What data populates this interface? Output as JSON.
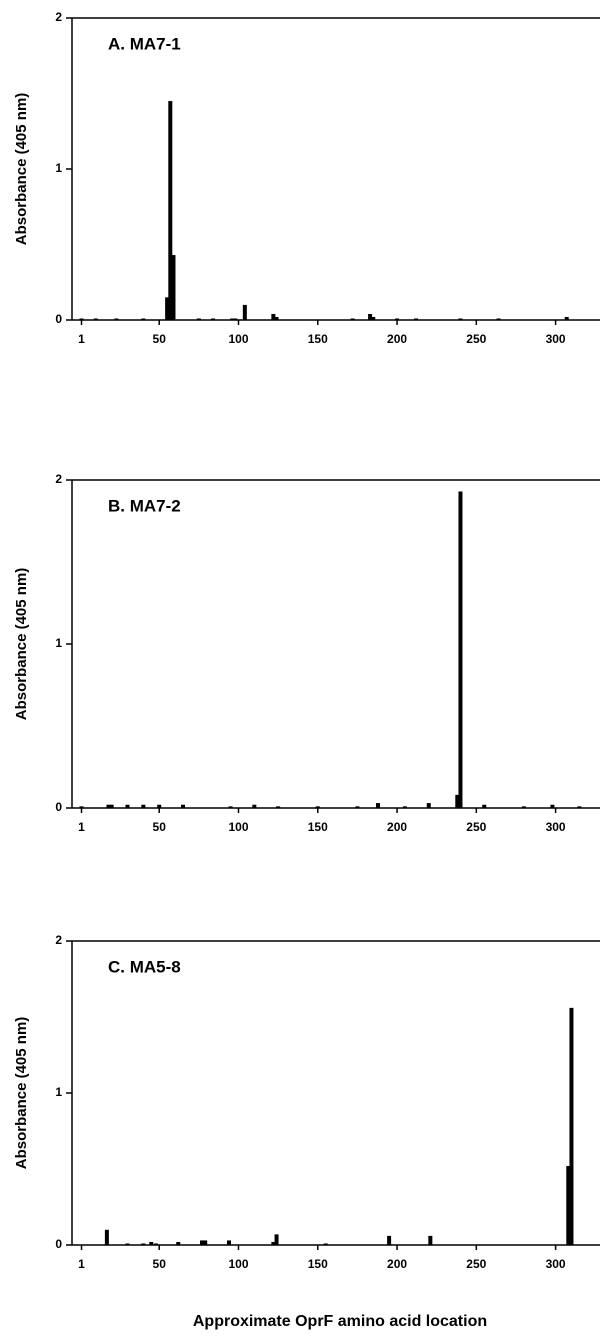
{
  "chart_data": [
    {
      "type": "bar",
      "title": "A. MA7-1",
      "ylabel": "Absorbance (405 nm)",
      "color": "#000000",
      "x": [
        1,
        10,
        23,
        40,
        55,
        57,
        59,
        75,
        84,
        96,
        98,
        104,
        122,
        124,
        172,
        183,
        185,
        200,
        212,
        240,
        264,
        307
      ],
      "values": [
        0.01,
        0.01,
        0.01,
        0.01,
        0.15,
        1.45,
        0.43,
        0.01,
        0.01,
        0.01,
        0.01,
        0.1,
        0.04,
        0.02,
        0.01,
        0.04,
        0.02,
        0.01,
        0.01,
        0.01,
        0.01,
        0.02
      ],
      "xlim": [
        -5,
        328
      ],
      "ylim": [
        0,
        2
      ],
      "yticks": [
        0,
        1,
        2
      ],
      "xticks": [
        1,
        50,
        100,
        150,
        200,
        250,
        300
      ]
    },
    {
      "type": "bar",
      "title": "B. MA7-2",
      "ylabel": "Absorbance (405 nm)",
      "color": "#000000",
      "x": [
        1,
        18,
        20,
        30,
        40,
        50,
        65,
        95,
        110,
        125,
        150,
        175,
        188,
        205,
        220,
        238,
        240,
        255,
        280,
        298,
        315
      ],
      "values": [
        0.01,
        0.02,
        0.02,
        0.02,
        0.02,
        0.02,
        0.02,
        0.01,
        0.02,
        0.01,
        0.01,
        0.01,
        0.03,
        0.01,
        0.03,
        0.08,
        1.93,
        0.02,
        0.01,
        0.02,
        0.01
      ],
      "xlim": [
        -5,
        328
      ],
      "ylim": [
        0,
        2
      ],
      "yticks": [
        0,
        1,
        2
      ],
      "xticks": [
        1,
        50,
        100,
        150,
        200,
        250,
        300
      ]
    },
    {
      "type": "bar",
      "title": "C. MA5-8",
      "ylabel": "Absorbance (405 nm)",
      "xlabel": "Approximate OprF amino acid location",
      "color": "#000000",
      "x": [
        17,
        30,
        40,
        45,
        48,
        62,
        77,
        79,
        94,
        122,
        124,
        155,
        195,
        221,
        308,
        310
      ],
      "values": [
        0.1,
        0.01,
        0.01,
        0.02,
        0.01,
        0.02,
        0.03,
        0.03,
        0.03,
        0.02,
        0.07,
        0.01,
        0.06,
        0.06,
        0.52,
        1.56
      ],
      "xlim": [
        -5,
        328
      ],
      "ylim": [
        0,
        2
      ],
      "yticks": [
        0,
        1,
        2
      ],
      "xticks": [
        1,
        50,
        100,
        150,
        200,
        250,
        300
      ]
    }
  ]
}
